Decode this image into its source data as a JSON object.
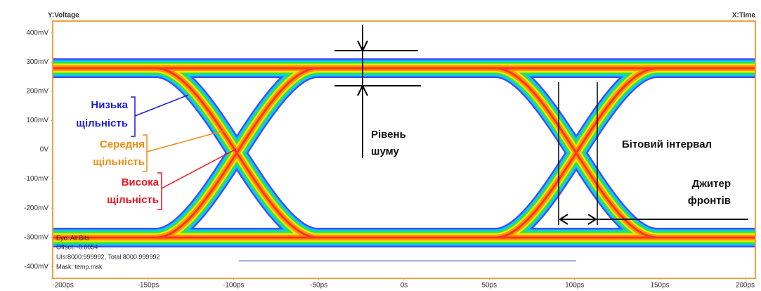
{
  "chart_data": {
    "type": "eye",
    "y_label": "Y:Voltage",
    "x_label": "X:Time",
    "xlim": [
      -206,
      206
    ],
    "ylim": [
      -440,
      440
    ],
    "xticks": [
      {
        "value": -200,
        "label": "-200ps"
      },
      {
        "value": -150,
        "label": "-150ps"
      },
      {
        "value": -100,
        "label": "-100ps"
      },
      {
        "value": -50,
        "label": "-50ps"
      },
      {
        "value": 0,
        "label": "0s"
      },
      {
        "value": 50,
        "label": "50ps"
      },
      {
        "value": 100,
        "label": "100ps"
      },
      {
        "value": 150,
        "label": "150ps"
      },
      {
        "value": 200,
        "label": "200ps"
      }
    ],
    "yticks": [
      {
        "value": 400,
        "label": "400mV"
      },
      {
        "value": 300,
        "label": "300mV"
      },
      {
        "value": 200,
        "label": "200mV"
      },
      {
        "value": 100,
        "label": "100mV"
      },
      {
        "value": 0,
        "label": "0V"
      },
      {
        "value": -100,
        "label": "-100mV"
      },
      {
        "value": -200,
        "label": "-200mV"
      },
      {
        "value": -300,
        "label": "-300mV"
      },
      {
        "value": -400,
        "label": "-400mV"
      }
    ],
    "info": [
      "Eye: All Bits",
      "Offset: -0.0054",
      "UIs:8000:999992, Total:8000:999992",
      "Mask: temp.msk"
    ],
    "annotations": {
      "low": [
        "Низька",
        "щільність"
      ],
      "medium": [
        "Середня",
        "щільність"
      ],
      "high": [
        "Висока",
        "щільність"
      ],
      "noise": [
        "Рівень",
        "шуму"
      ],
      "bit": [
        "Бітовий інтервал"
      ],
      "jitter": [
        "Джитер",
        "фронтів"
      ]
    }
  }
}
